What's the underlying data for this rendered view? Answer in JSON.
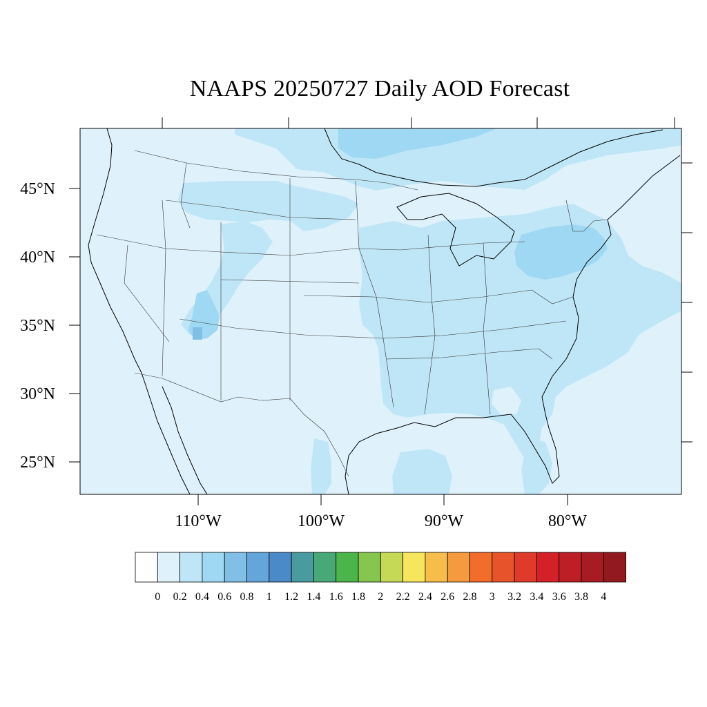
{
  "title": "NAAPS 20250727 Daily AOD Forecast",
  "map": {
    "lat_ticks": [
      "45°N",
      "40°N",
      "35°N",
      "30°N",
      "25°N"
    ],
    "lon_ticks": [
      "110°W",
      "100°W",
      "90°W",
      "80°W"
    ],
    "background_color": "#dff2fb"
  },
  "colorbar": {
    "labels": [
      "0",
      "0.2",
      "0.4",
      "0.6",
      "0.8",
      "1",
      "1.2",
      "1.4",
      "1.6",
      "1.8",
      "2",
      "2.2",
      "2.4",
      "2.6",
      "2.8",
      "3",
      "3.2",
      "3.4",
      "3.6",
      "3.8",
      "4"
    ],
    "colors": [
      "#ffffff",
      "#dff2fb",
      "#bfe6f7",
      "#9fd8f3",
      "#82bfe6",
      "#64a5da",
      "#4a8ac9",
      "#4a9b9f",
      "#48a878",
      "#4bb54b",
      "#86c54e",
      "#c5d957",
      "#f7e55d",
      "#f7bd4a",
      "#f59a3e",
      "#f26c2a",
      "#e8542a",
      "#e03a2a",
      "#d42027",
      "#be1e26",
      "#a81b22",
      "#921a1e"
    ]
  }
}
